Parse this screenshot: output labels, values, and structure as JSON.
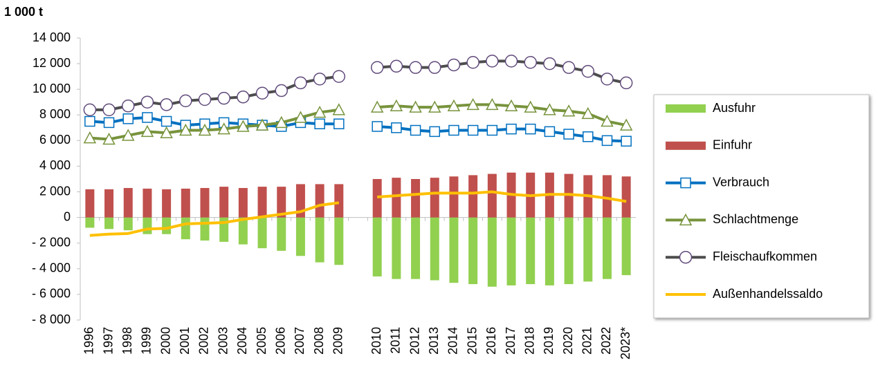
{
  "chart_data": {
    "type": "bar_line",
    "title": "1 000 t",
    "categories": [
      "1996",
      "1997",
      "1998",
      "1999",
      "2000",
      "2001",
      "2002",
      "2003",
      "2004",
      "2005",
      "2006",
      "2007",
      "2008",
      "2009",
      null,
      "2010",
      "2011",
      "2012",
      "2013",
      "2014",
      "2015",
      "2016",
      "2017",
      "2018",
      "2019",
      "2020",
      "2021",
      "2022",
      "2023*"
    ],
    "series": [
      {
        "name": "Ausfuhr",
        "kind": "bar",
        "color": "#92d050",
        "values": [
          -800,
          -900,
          -1000,
          -1300,
          -1300,
          -1700,
          -1800,
          -1900,
          -2100,
          -2400,
          -2600,
          -3000,
          -3500,
          -3700,
          null,
          -4600,
          -4800,
          -4800,
          -4900,
          -5100,
          -5200,
          -5400,
          -5300,
          -5200,
          -5300,
          -5200,
          -5000,
          -4800,
          -4500
        ]
      },
      {
        "name": "Einfuhr",
        "kind": "bar",
        "color": "#c0504d",
        "values": [
          2200,
          2200,
          2300,
          2250,
          2200,
          2250,
          2300,
          2400,
          2300,
          2400,
          2400,
          2600,
          2600,
          2600,
          null,
          3000,
          3100,
          3000,
          3100,
          3200,
          3300,
          3400,
          3500,
          3500,
          3500,
          3400,
          3300,
          3300,
          3200
        ]
      },
      {
        "name": "Verbrauch",
        "kind": "line",
        "marker": "square",
        "color": "#0070c0",
        "values": [
          7500,
          7400,
          7700,
          7800,
          7500,
          7200,
          7300,
          7400,
          7300,
          7200,
          7100,
          7400,
          7300,
          7300,
          null,
          7100,
          7000,
          6800,
          6700,
          6800,
          6800,
          6800,
          6900,
          6900,
          6700,
          6500,
          6300,
          6000,
          5950
        ]
      },
      {
        "name": "Schlachtmenge",
        "kind": "line",
        "marker": "triangle",
        "color": "#77933c",
        "values": [
          6200,
          6100,
          6400,
          6700,
          6600,
          6800,
          6800,
          6900,
          7100,
          7200,
          7400,
          7800,
          8200,
          8400,
          null,
          8600,
          8700,
          8600,
          8600,
          8700,
          8800,
          8800,
          8700,
          8600,
          8400,
          8300,
          8100,
          7500,
          7200
        ]
      },
      {
        "name": "Fleischaufkommen",
        "kind": "line",
        "marker": "circle",
        "color": "#4d4d4d",
        "values": [
          8400,
          8400,
          8700,
          9000,
          8800,
          9100,
          9200,
          9300,
          9400,
          9700,
          9900,
          10500,
          10800,
          11000,
          null,
          11700,
          11800,
          11700,
          11700,
          11900,
          12100,
          12200,
          12200,
          12100,
          12000,
          11700,
          11400,
          10800,
          10500
        ]
      },
      {
        "name": "Außenhandelssaldo",
        "kind": "line",
        "color": "#ffc000",
        "values": [
          -1400,
          -1300,
          -1250,
          -900,
          -850,
          -500,
          -450,
          -400,
          -150,
          50,
          250,
          450,
          950,
          1150,
          null,
          1600,
          1700,
          1800,
          1900,
          1900,
          1900,
          2000,
          1800,
          1700,
          1800,
          1800,
          1700,
          1500,
          1250
        ]
      }
    ],
    "ylim": [
      -8000,
      14000
    ],
    "yticks": [
      {
        "value": -8000,
        "label": "- 8 000"
      },
      {
        "value": -6000,
        "label": "- 6 000"
      },
      {
        "value": -4000,
        "label": "- 4 000"
      },
      {
        "value": -2000,
        "label": "- 2 000"
      },
      0,
      {
        "value": 2000,
        "label": "2 000"
      },
      {
        "value": 4000,
        "label": "4 000"
      },
      {
        "value": 6000,
        "label": "6 000"
      },
      {
        "value": 8000,
        "label": "8 000"
      },
      {
        "value": 10000,
        "label": "10 000"
      },
      {
        "value": 12000,
        "label": "12 000"
      },
      {
        "value": 14000,
        "label": "14 000"
      }
    ],
    "grid": false,
    "legend": "right"
  }
}
